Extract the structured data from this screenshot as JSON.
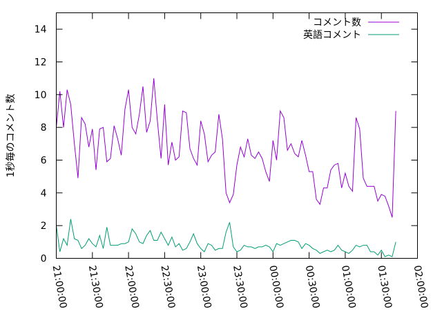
{
  "chart_data": {
    "type": "line",
    "title": "",
    "xlabel": "",
    "ylabel": "1秒毎のコメント数",
    "xlim": [
      "21:00:00",
      "02:00:00"
    ],
    "ylim": [
      0,
      15
    ],
    "yticks": [
      0,
      2,
      4,
      6,
      8,
      10,
      12,
      14
    ],
    "xticks": [
      "21:00:00",
      "21:30:00",
      "22:00:00",
      "22:30:00",
      "23:00:00",
      "23:30:00",
      "00:00:00",
      "00:30:00",
      "01:00:00",
      "01:30:00",
      "02:00:00"
    ],
    "legend_position": "top-right",
    "grid": false,
    "series": [
      {
        "name": "コメント数",
        "color": "#9400d3",
        "x_minutes": [
          0,
          3,
          6,
          9,
          12,
          15,
          18,
          21,
          24,
          27,
          30,
          33,
          36,
          39,
          42,
          45,
          48,
          51,
          54,
          57,
          60,
          63,
          66,
          69,
          72,
          75,
          78,
          81,
          84,
          87,
          90,
          93,
          96,
          99,
          102,
          105,
          108,
          111,
          114,
          117,
          120,
          123,
          126,
          129,
          132,
          135,
          138,
          141,
          144,
          147,
          150,
          153,
          156,
          159,
          162,
          165,
          168,
          171,
          174,
          177,
          180,
          183,
          186,
          189,
          192,
          195,
          198,
          201,
          204,
          207,
          210,
          213,
          216,
          219,
          222,
          225,
          228,
          231,
          234,
          237,
          240,
          243,
          246,
          249,
          252,
          255,
          258,
          261,
          264,
          267,
          270,
          273,
          276,
          279,
          282
        ],
        "values": [
          8.0,
          10.2,
          8.0,
          10.3,
          9.4,
          7.0,
          4.9,
          8.6,
          8.2,
          6.8,
          7.9,
          5.4,
          7.9,
          8.0,
          5.9,
          6.1,
          8.1,
          7.3,
          6.3,
          9.1,
          10.3,
          8.0,
          7.6,
          8.8,
          10.5,
          7.7,
          8.4,
          11.0,
          8.4,
          6.1,
          9.4,
          5.7,
          7.1,
          6.0,
          6.2,
          9.0,
          8.9,
          6.7,
          6.1,
          5.7,
          8.4,
          7.6,
          5.9,
          6.3,
          6.5,
          8.8,
          7.3,
          4.0,
          3.4,
          3.9,
          5.7,
          6.8,
          6.2,
          7.3,
          6.3,
          6.1,
          6.5,
          6.1,
          5.3,
          4.7,
          7.2,
          6.0,
          9.0,
          8.6,
          6.6,
          7.0,
          6.4,
          6.2,
          7.2,
          6.3,
          5.3,
          5.3,
          3.6,
          3.3,
          4.3,
          4.3,
          5.4,
          5.7,
          5.8,
          4.3,
          5.2,
          4.4,
          4.1,
          8.6,
          7.9,
          4.9,
          4.4,
          4.4,
          4.4,
          3.5,
          3.9,
          3.8,
          3.2,
          2.5,
          9.0
        ]
      },
      {
        "name": "英語コメント",
        "color": "#009e73",
        "x_minutes": [
          0,
          3,
          6,
          9,
          12,
          15,
          18,
          21,
          24,
          27,
          30,
          33,
          36,
          39,
          42,
          45,
          48,
          51,
          54,
          57,
          60,
          63,
          66,
          69,
          72,
          75,
          78,
          81,
          84,
          87,
          90,
          93,
          96,
          99,
          102,
          105,
          108,
          111,
          114,
          117,
          120,
          123,
          126,
          129,
          132,
          135,
          138,
          141,
          144,
          147,
          150,
          153,
          156,
          159,
          162,
          165,
          168,
          171,
          174,
          177,
          180,
          183,
          186,
          189,
          192,
          195,
          198,
          201,
          204,
          207,
          210,
          213,
          216,
          219,
          222,
          225,
          228,
          231,
          234,
          237,
          240,
          243,
          246,
          249,
          252,
          255,
          258,
          261,
          264,
          267,
          270,
          273,
          276,
          279,
          282
        ],
        "values": [
          2.0,
          0.4,
          1.2,
          0.8,
          2.4,
          1.2,
          1.1,
          0.6,
          0.8,
          1.2,
          0.9,
          0.7,
          1.4,
          0.6,
          1.9,
          0.8,
          0.8,
          0.8,
          0.9,
          0.9,
          1.0,
          1.8,
          1.5,
          1.0,
          0.9,
          1.4,
          1.7,
          1.1,
          1.1,
          1.6,
          1.2,
          0.8,
          1.3,
          0.7,
          0.9,
          0.5,
          0.6,
          1.0,
          1.5,
          0.9,
          0.6,
          0.4,
          0.9,
          0.8,
          0.5,
          0.6,
          0.6,
          1.6,
          2.2,
          0.7,
          0.4,
          0.5,
          0.8,
          0.7,
          0.7,
          0.6,
          0.7,
          0.7,
          0.8,
          0.7,
          0.4,
          0.9,
          0.8,
          0.9,
          1.0,
          1.1,
          1.1,
          1.0,
          0.6,
          0.9,
          0.8,
          0.6,
          0.5,
          0.3,
          0.4,
          0.5,
          0.4,
          0.5,
          0.8,
          0.5,
          0.4,
          0.3,
          0.5,
          0.8,
          0.7,
          0.8,
          0.8,
          0.4,
          0.4,
          0.2,
          0.5,
          0.1,
          0.2,
          0.1,
          1.0
        ]
      }
    ]
  }
}
